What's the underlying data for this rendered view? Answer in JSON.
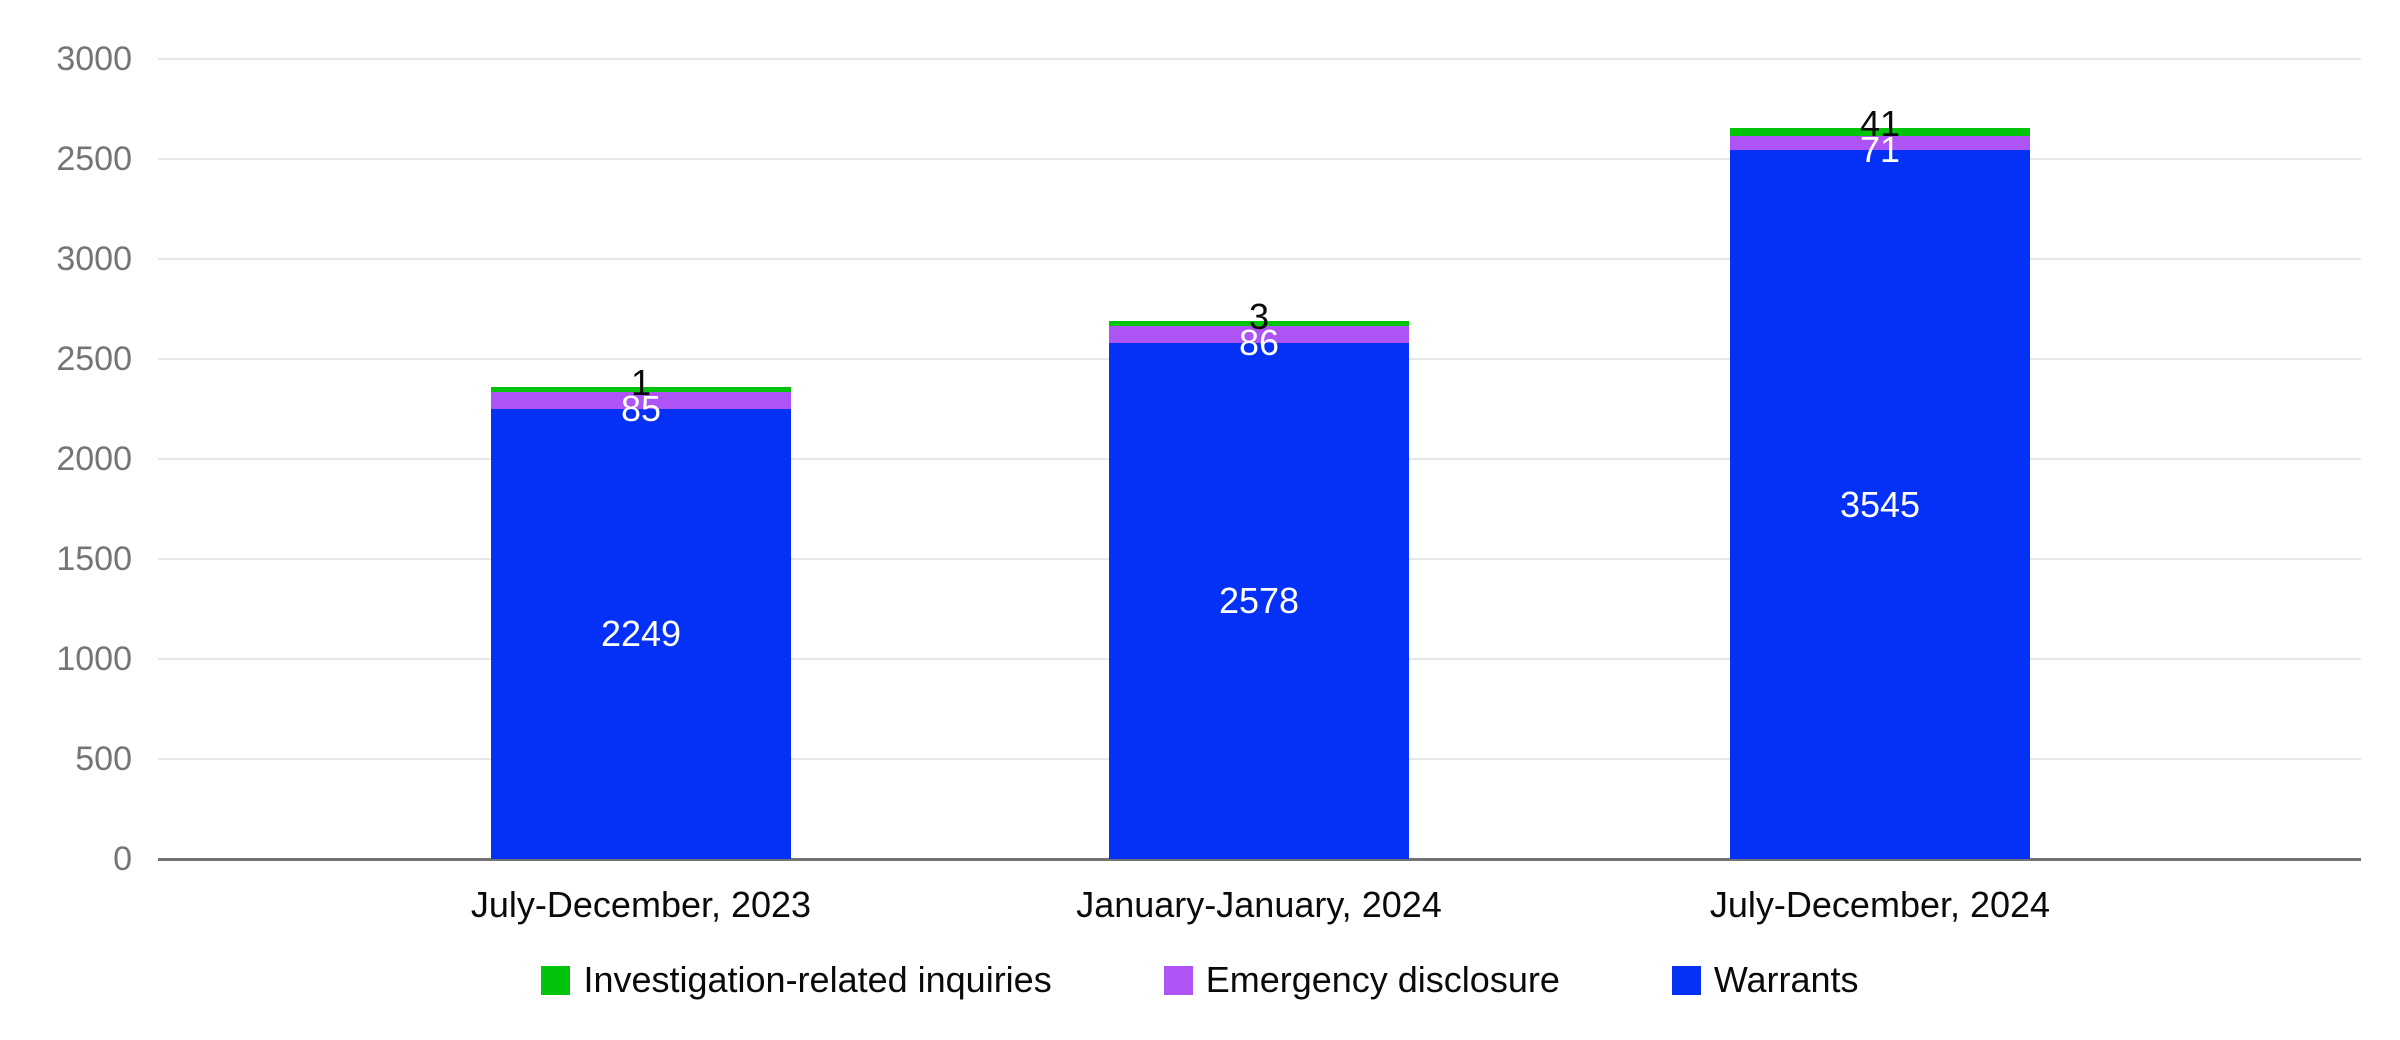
{
  "chart_data": {
    "type": "bar",
    "stacked": true,
    "title": "",
    "xlabel": "",
    "ylabel": "",
    "categories": [
      "July-December, 2023",
      "January-January, 2024",
      "July-December, 2024"
    ],
    "series": [
      {
        "name": "Warrants",
        "color": "#0531f7",
        "values": [
          2249,
          2578,
          3545
        ],
        "label_style": "white-centered-inside"
      },
      {
        "name": "Emergency disclosure",
        "color": "#ae54f5",
        "values": [
          85,
          86,
          71
        ],
        "label_style": "white-at-segment-base"
      },
      {
        "name": "Investigation-related inquiries",
        "color": "#03c30a",
        "values": [
          1,
          3,
          41
        ],
        "label_style": "black-above-bar"
      }
    ],
    "y_axis_labels_top_to_bottom": [
      "3000",
      "2500",
      "3000",
      "2500",
      "2000",
      "1500",
      "1000",
      "500",
      "0"
    ],
    "ylim": [
      0,
      4000
    ],
    "grid": true,
    "legend_position": "bottom",
    "style": {
      "background": "#ffffff",
      "grid_color": "#e7e7e7",
      "axis_color": "#737373",
      "tick_label_color": "#757575",
      "text_color": "#0a0a0a"
    }
  },
  "legend": {
    "items": [
      {
        "label": "Investigation-related inquiries",
        "color": "#03c30a"
      },
      {
        "label": "Emergency disclosure",
        "color": "#ae54f5"
      },
      {
        "label": "Warrants",
        "color": "#0531f7"
      }
    ]
  }
}
